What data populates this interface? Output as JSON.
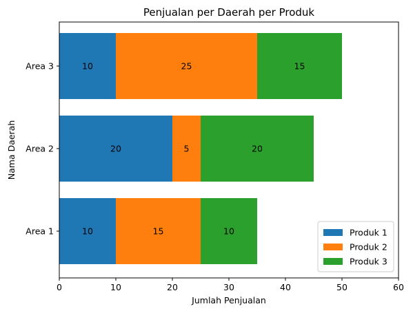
{
  "chart_data": {
    "type": "bar",
    "orientation": "horizontal",
    "stacked": true,
    "title": "Penjualan per Daerah per Produk",
    "xlabel": "Jumlah Penjualan",
    "ylabel": "Nama Daerah",
    "categories": [
      "Area 1",
      "Area 2",
      "Area 3"
    ],
    "xlim": [
      0,
      60
    ],
    "xticks": [
      0,
      10,
      20,
      30,
      40,
      50,
      60
    ],
    "grid": false,
    "legend_position": "bottom-right",
    "series": [
      {
        "name": "Produk 1",
        "color": "#1f77b4",
        "values": [
          10,
          20,
          10
        ]
      },
      {
        "name": "Produk 2",
        "color": "#ff7f0e",
        "values": [
          15,
          5,
          25
        ]
      },
      {
        "name": "Produk 3",
        "color": "#2ca02c",
        "values": [
          10,
          20,
          15
        ]
      }
    ]
  }
}
